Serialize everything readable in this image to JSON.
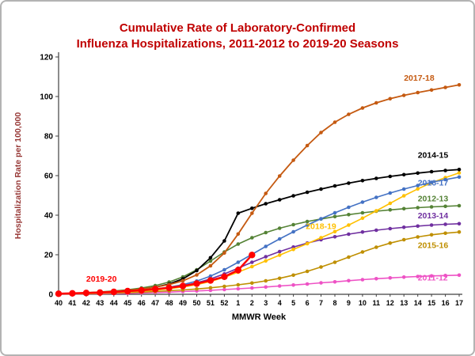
{
  "header": {
    "line1": "Cumulative Rate of Laboratory-Confirmed",
    "line2": "Influenza Hospitalizations, 2011-2012 to 2019-20 Seasons"
  },
  "chart_data": {
    "type": "line",
    "title": "Cumulative Rate of Laboratory-Confirmed Influenza Hospitalizations, 2011-2012 to 2019-20 Seasons",
    "xlabel": "MMWR Week",
    "ylabel": "Hospitalization Rate per 100,000",
    "ylim": [
      0,
      120
    ],
    "yticks": [
      0,
      20,
      40,
      60,
      80,
      100,
      120
    ],
    "grid": false,
    "legend_position": "inline-labels",
    "colors": {
      "title": "#C00000",
      "axis_label": "#963634",
      "tick": "#000000"
    },
    "categories": [
      "40",
      "41",
      "42",
      "43",
      "44",
      "45",
      "46",
      "47",
      "48",
      "49",
      "50",
      "51",
      "52",
      "1",
      "2",
      "3",
      "4",
      "5",
      "6",
      "7",
      "8",
      "9",
      "10",
      "11",
      "12",
      "13",
      "14",
      "15",
      "16",
      "17"
    ],
    "series": [
      {
        "name": "2011-12",
        "color": "#EE52C5",
        "values": [
          0.1,
          0.1,
          0.2,
          0.3,
          0.4,
          0.5,
          0.7,
          0.9,
          1.1,
          1.4,
          1.7,
          2.0,
          2.4,
          2.8,
          3.2,
          3.7,
          4.2,
          4.7,
          5.2,
          5.8,
          6.3,
          6.9,
          7.4,
          7.9,
          8.3,
          8.7,
          9.0,
          9.3,
          9.5,
          9.7
        ]
      },
      {
        "name": "2015-16",
        "color": "#BF8F00",
        "values": [
          0.1,
          0.2,
          0.3,
          0.5,
          0.7,
          0.9,
          1.1,
          1.4,
          1.8,
          2.2,
          2.7,
          3.3,
          4.0,
          4.8,
          5.7,
          6.8,
          8.1,
          9.7,
          11.6,
          13.8,
          16.2,
          18.8,
          21.4,
          23.8,
          25.9,
          27.6,
          29.0,
          30.1,
          30.9,
          31.5
        ]
      },
      {
        "name": "2013-14",
        "color": "#7030A0",
        "values": [
          0.2,
          0.3,
          0.5,
          0.7,
          1.0,
          1.3,
          1.8,
          2.4,
          3.2,
          4.3,
          5.8,
          7.8,
          10.3,
          13.2,
          16.2,
          19.0,
          21.6,
          23.9,
          25.9,
          27.6,
          29.1,
          30.4,
          31.5,
          32.4,
          33.2,
          33.9,
          34.5,
          35.0,
          35.4,
          35.7
        ]
      },
      {
        "name": "2012-13",
        "color": "#548235",
        "values": [
          0.3,
          0.5,
          0.8,
          1.2,
          1.7,
          2.3,
          3.2,
          4.4,
          6.2,
          8.8,
          12.4,
          16.8,
          21.4,
          25.4,
          28.6,
          31.2,
          33.4,
          35.2,
          36.8,
          38.1,
          39.3,
          40.3,
          41.2,
          42.0,
          42.7,
          43.3,
          43.8,
          44.2,
          44.5,
          44.8
        ]
      },
      {
        "name": "2018-19",
        "color": "#FFC000",
        "values": [
          0.2,
          0.3,
          0.5,
          0.7,
          0.9,
          1.2,
          1.6,
          2.1,
          2.8,
          3.7,
          4.9,
          6.5,
          8.6,
          11.2,
          14.0,
          16.9,
          19.8,
          22.7,
          25.6,
          28.6,
          31.7,
          35.0,
          38.5,
          42.2,
          46.0,
          49.8,
          53.3,
          56.4,
          59.0,
          61.4
        ]
      },
      {
        "name": "2016-17",
        "color": "#4472C4",
        "values": [
          0.2,
          0.4,
          0.6,
          0.8,
          1.1,
          1.5,
          2.0,
          2.7,
          3.6,
          4.9,
          6.7,
          9.2,
          12.4,
          16.2,
          20.2,
          24.2,
          28.0,
          31.6,
          35.0,
          38.2,
          41.2,
          44.0,
          46.6,
          49.0,
          51.2,
          53.2,
          55.0,
          56.6,
          58.0,
          59.3
        ]
      },
      {
        "name": "2014-15",
        "color": "#000000",
        "line_width": 1.8,
        "values": [
          0.3,
          0.5,
          0.7,
          1.0,
          1.4,
          1.9,
          2.6,
          3.6,
          5.2,
          7.8,
          12.0,
          18.5,
          27.0,
          41.0,
          43.5,
          45.8,
          47.8,
          49.8,
          51.6,
          53.2,
          54.8,
          56.2,
          57.5,
          58.6,
          59.6,
          60.5,
          61.3,
          62.0,
          62.6,
          63.1
        ]
      },
      {
        "name": "2017-18",
        "color": "#C55A11",
        "line_width": 1.8,
        "values": [
          0.3,
          0.5,
          0.8,
          1.1,
          1.5,
          2.0,
          2.7,
          3.6,
          4.9,
          6.8,
          9.8,
          14.4,
          20.9,
          30.5,
          41.0,
          51.0,
          59.8,
          67.8,
          75.2,
          81.8,
          87.0,
          91.0,
          94.2,
          96.8,
          98.9,
          100.6,
          102.0,
          103.3,
          104.6,
          105.9
        ]
      },
      {
        "name": "2019-20",
        "color": "#FF0000",
        "line_width": 2.5,
        "marker_r": 4.2,
        "values": [
          0.3,
          0.5,
          0.7,
          0.9,
          1.2,
          1.6,
          2.0,
          2.6,
          3.3,
          4.2,
          5.4,
          7.0,
          8.9,
          12.2,
          19.9,
          null,
          null,
          null,
          null,
          null,
          null,
          null,
          null,
          null,
          null,
          null,
          null,
          null,
          null,
          null
        ]
      }
    ],
    "annotations": [
      {
        "text": "2017-18",
        "week": "13",
        "value": 108,
        "color": "#C55A11",
        "anchor": "start"
      },
      {
        "text": "2014-15",
        "week": "14",
        "value": 69,
        "color": "#000000",
        "anchor": "start"
      },
      {
        "text": "2016-17",
        "week": "14",
        "value": 55,
        "color": "#4472C4",
        "anchor": "start"
      },
      {
        "text": "2012-13",
        "week": "14",
        "value": 47,
        "color": "#548235",
        "anchor": "start"
      },
      {
        "text": "2013-14",
        "week": "14",
        "value": 38.5,
        "color": "#7030A0",
        "anchor": "start"
      },
      {
        "text": "2018-19",
        "week": "7",
        "value": 33,
        "color": "#FFC000",
        "anchor": "middle"
      },
      {
        "text": "2015-16",
        "week": "14",
        "value": 23.5,
        "color": "#BF8F00",
        "anchor": "start"
      },
      {
        "text": "2011-12",
        "week": "14",
        "value": 7,
        "color": "#EE52C5",
        "anchor": "start"
      },
      {
        "text": "2019-20",
        "week": "42",
        "value": 6.5,
        "color": "#FF0000",
        "anchor": "start"
      }
    ]
  }
}
